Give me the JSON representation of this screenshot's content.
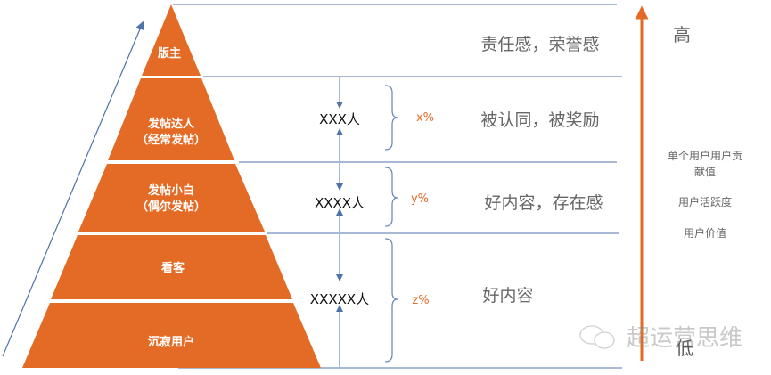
{
  "colors": {
    "pyramid": "#E46B25",
    "lines": "#4F73A8",
    "axis_arrow": "#E46B25"
  },
  "pyramid": [
    {
      "label": "版主",
      "sub": ""
    },
    {
      "label": "发帖达人",
      "sub": "（经常发帖）"
    },
    {
      "label": "发帖小白",
      "sub": "（偶尔发帖）"
    },
    {
      "label": "看客",
      "sub": ""
    },
    {
      "label": "沉寂用户",
      "sub": ""
    }
  ],
  "counts": [
    "XXX人",
    "XXXX人",
    "XXXXX人"
  ],
  "percentages": [
    "x%",
    "y%",
    "z%"
  ],
  "motivations": [
    "责任感，荣誉感",
    "被认同，被奖励",
    "好内容，存在感",
    "好内容"
  ],
  "axis": {
    "high": "高",
    "low": "低",
    "labels": [
      "单个用户用户贡",
      "献值",
      "用户活跃度",
      "用户价值"
    ]
  },
  "watermark": "超运营思维"
}
